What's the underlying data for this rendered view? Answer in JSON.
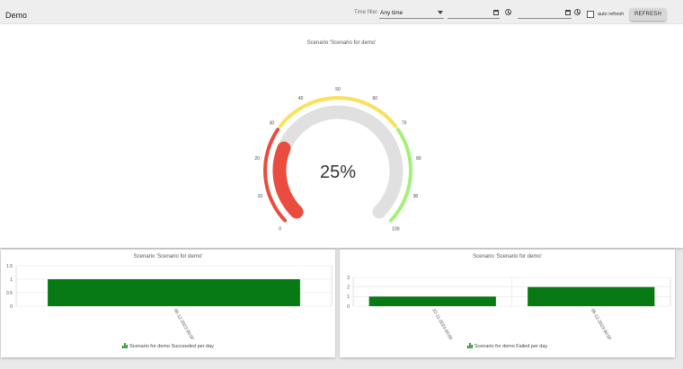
{
  "header": {
    "title": "Demo",
    "time_filter_label": "Time filter",
    "time_filter_value": "Any time",
    "date_from": "",
    "date_to": "",
    "auto_refresh_label": "auto refresh",
    "refresh_label": "REFRESH"
  },
  "colors": {
    "red": "#ea4c3f",
    "yellow": "#fce05a",
    "green": "#a4f07a",
    "track": "#e0e0e0",
    "bar": "#087a13"
  },
  "chart_data": [
    {
      "type": "gauge",
      "title": "Scenario 'Scenario for demo'",
      "value": 25,
      "value_label": "25%",
      "min": 0,
      "max": 100,
      "ticks": [
        "0",
        "10",
        "20",
        "30",
        "40",
        "50",
        "60",
        "70",
        "80",
        "90",
        "100"
      ],
      "bands": [
        {
          "from": 0,
          "to": 30,
          "color": "#ea4c3f"
        },
        {
          "from": 30,
          "to": 70,
          "color": "#fce05a"
        },
        {
          "from": 70,
          "to": 100,
          "color": "#a4f07a"
        }
      ]
    },
    {
      "type": "bar",
      "title": "Scenario 'Scenario for demo'",
      "categories": [
        "06-12-2023 00:00"
      ],
      "values": [
        1
      ],
      "ylim": [
        0,
        1.5
      ],
      "yticks": [
        "0",
        "0.5",
        "1",
        "1.5"
      ],
      "legend": "Scenario for demo Succeeded per day",
      "grid": true
    },
    {
      "type": "bar",
      "title": "Scenario 'Scenario for demo'",
      "categories": [
        "22-11-2023 00:00",
        "06-12-2023 00:00"
      ],
      "values": [
        1,
        2
      ],
      "ylim": [
        0,
        3
      ],
      "yticks": [
        "0",
        "1",
        "2",
        "3"
      ],
      "legend": "Scenario for demo Failed per day",
      "grid": true
    }
  ]
}
